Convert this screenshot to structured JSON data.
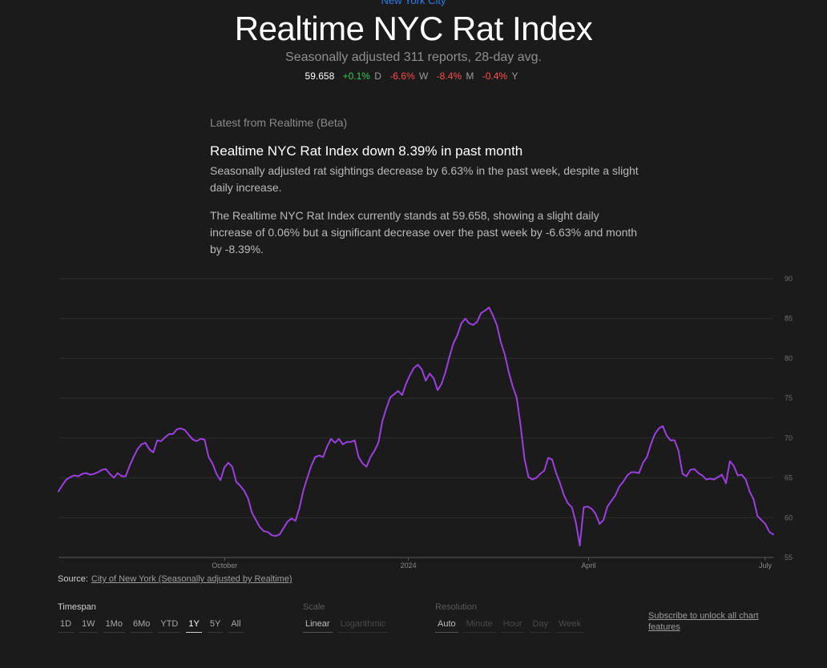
{
  "header": {
    "location": "New York City",
    "title": "Realtime NYC Rat Index",
    "subtitle": "Seasonally adjusted 311 reports, 28-day avg."
  },
  "stats": {
    "value": "59.658",
    "day": "+0.1%",
    "day_unit": "D",
    "week": "-6.6%",
    "week_unit": "W",
    "month": "-8.4%",
    "month_unit": "M",
    "year": "-0.4%",
    "year_unit": "Y"
  },
  "summary": {
    "kicker": "Latest from Realtime (Beta)",
    "headline": "Realtime NYC Rat Index down 8.39% in past month",
    "lead": "Seasonally adjusted rat sightings decrease by 6.63% in the past week, despite a slight daily increase.",
    "body": "The Realtime NYC Rat Index currently stands at 59.658, showing a slight daily increase of 0.06% but a significant decrease over the past week by -6.63% and month by -8.39%."
  },
  "colors": {
    "line": "#9b3fe0",
    "positive": "#34c759",
    "negative": "#ff4d4d",
    "link": "#2d7cf0"
  },
  "chart_data": {
    "type": "line",
    "ylim": [
      55,
      90
    ],
    "y_ticks": [
      "55",
      "60",
      "65",
      "70",
      "75",
      "80",
      "85",
      "90"
    ],
    "x_ticks": [
      "October",
      "2024",
      "April",
      "July"
    ],
    "x_tick_pos": [
      0.235,
      0.495,
      0.75,
      1.0
    ],
    "grid": true,
    "series": [
      {
        "values": [
          63.3,
          64.1,
          64.8,
          65.1,
          65.3,
          65.2,
          65.5,
          65.6,
          65.4,
          65.5,
          65.7,
          66.0,
          66.1,
          65.5,
          65.0,
          65.6,
          65.2,
          65.2,
          66.5,
          67.6,
          68.6,
          69.2,
          69.4,
          68.6,
          68.2,
          69.7,
          69.6,
          70.1,
          70.5,
          70.5,
          71.1,
          71.2,
          71.0,
          70.4,
          69.8,
          69.6,
          69.9,
          69.8,
          67.6,
          66.8,
          65.5,
          64.7,
          66.3,
          66.9,
          66.4,
          64.5,
          64.0,
          63.4,
          62.4,
          60.6,
          59.7,
          58.8,
          58.3,
          58.2,
          57.8,
          57.7,
          57.9,
          58.7,
          59.5,
          59.9,
          59.6,
          61.2,
          63.4,
          65.0,
          66.5,
          67.6,
          67.8,
          67.6,
          68.9,
          69.9,
          69.4,
          69.9,
          69.2,
          69.5,
          69.5,
          69.7,
          67.6,
          66.8,
          66.4,
          67.6,
          68.4,
          69.4,
          72.1,
          73.7,
          75.1,
          75.5,
          75.9,
          75.4,
          76.8,
          77.9,
          78.8,
          79.2,
          78.6,
          77.2,
          78.1,
          77.5,
          76.0,
          76.8,
          78.3,
          80.2,
          81.9,
          82.9,
          84.4,
          85.0,
          84.4,
          84.2,
          84.6,
          85.7,
          86.0,
          86.4,
          85.4,
          84.2,
          82.0,
          80.5,
          78.3,
          76.5,
          75.1,
          71.6,
          67.4,
          65.1,
          64.8,
          65.0,
          65.5,
          65.9,
          67.5,
          67.3,
          65.6,
          64.3,
          62.8,
          61.8,
          61.3,
          59.4,
          56.5,
          61.3,
          61.4,
          61.1,
          60.5,
          59.2,
          59.7,
          61.4,
          62.1,
          62.8,
          63.9,
          64.5,
          65.3,
          65.7,
          65.7,
          65.6,
          66.9,
          67.6,
          69.2,
          70.5,
          71.2,
          71.5,
          70.3,
          69.7,
          69.7,
          68.4,
          65.5,
          65.2,
          66.0,
          66.1,
          65.6,
          65.3,
          64.8,
          64.9,
          64.8,
          65.1,
          65.4,
          64.3,
          67.1,
          66.5,
          65.3,
          65.4,
          64.8,
          63.3,
          62.3,
          60.2,
          59.7,
          59.2,
          58.2,
          57.9
        ]
      }
    ]
  },
  "source": {
    "label": "Source:",
    "link": "City of New York (Seasonally adjusted by Realtime)"
  },
  "controls": {
    "timespan_label": "Timespan",
    "timespan": [
      "1D",
      "1W",
      "1Mo",
      "6Mo",
      "YTD",
      "1Y",
      "5Y",
      "All"
    ],
    "scale_label": "Scale",
    "scale": [
      "Linear",
      "Logarithmic"
    ],
    "resolution_label": "Resolution",
    "resolution": [
      "Auto",
      "Minute",
      "Hour",
      "Day",
      "Week"
    ],
    "subscribe": "Subscribe to unlock all chart features"
  }
}
